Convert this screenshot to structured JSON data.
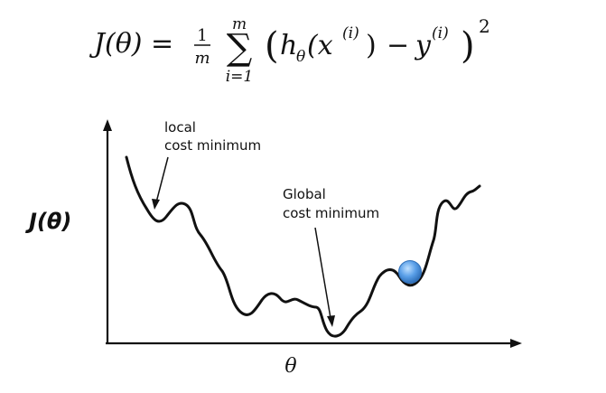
{
  "formula": {
    "lhs": "J(θ) =",
    "fraction_numerator": "1",
    "fraction_denominator": "m",
    "sum_symbol": "∑",
    "sum_upper": "m",
    "sum_lower": "i=1",
    "open_paren": "(",
    "h_base": "h",
    "h_sub": "θ",
    "x_open": "(x",
    "x_sup": "(i)",
    "x_close": ")",
    "minus": "−",
    "y_base": "y",
    "y_sup": "(i)",
    "close_paren": ")",
    "power": "2"
  },
  "diagram": {
    "y_axis_label": "J(θ)",
    "x_axis_label": "θ",
    "local_label_line1": "local",
    "local_label_line2": "cost minimum",
    "global_label_line1": "Global",
    "global_label_line2": "cost minimum"
  },
  "colors": {
    "ink": "#111111",
    "ball_fill": "#4a90e2",
    "ball_highlight": "#8ec1f4",
    "ball_stroke": "#2f6fb8"
  }
}
